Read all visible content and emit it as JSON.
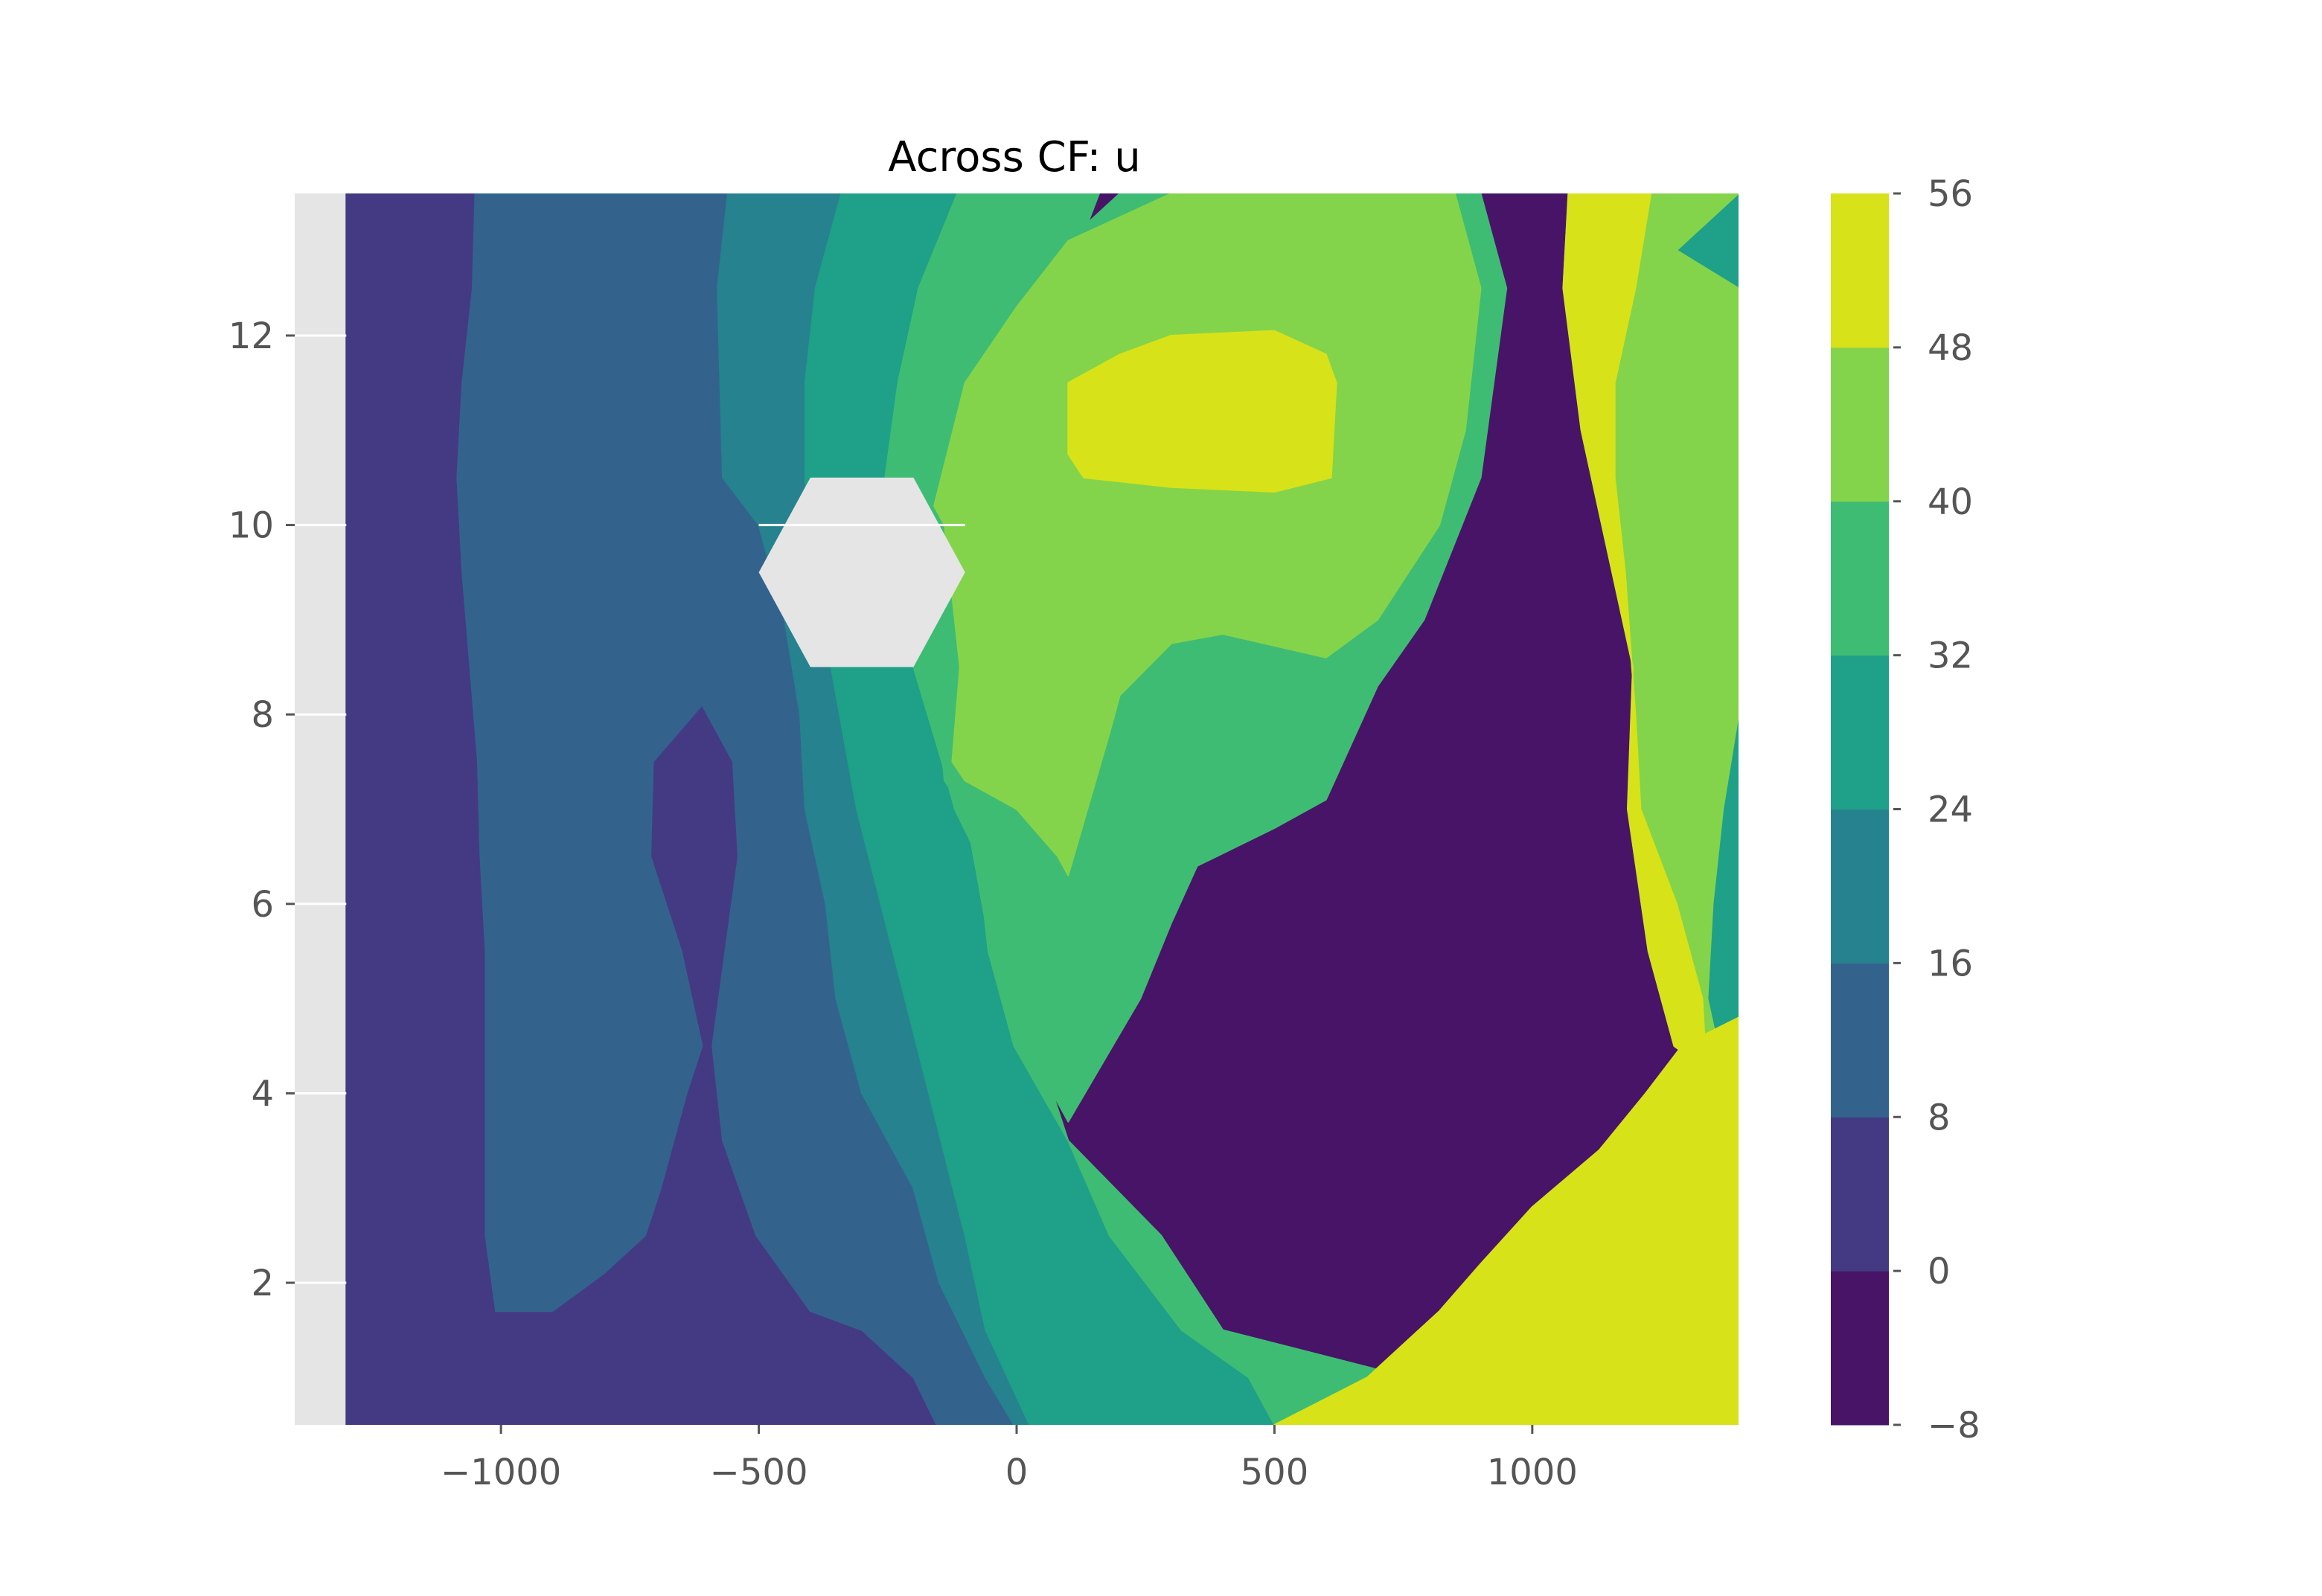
{
  "chart_data": {
    "type": "contour",
    "title": "Across CF: u",
    "xlabel": "",
    "ylabel": "",
    "xlim": [
      -1400,
      1400
    ],
    "ylim": [
      0.5,
      13.5
    ],
    "x_ticks": [
      -1000,
      -500,
      0,
      500,
      1000
    ],
    "x_tick_labels": [
      "−1000",
      "−500",
      "0",
      "500",
      "1000"
    ],
    "y_ticks": [
      2,
      4,
      6,
      8,
      10,
      12
    ],
    "y_tick_labels": [
      "2",
      "4",
      "6",
      "8",
      "10",
      "12"
    ],
    "grid": true,
    "background": "#e5e5e5",
    "colorbar": {
      "levels": [
        -8,
        0,
        8,
        16,
        24,
        32,
        40,
        48,
        56
      ],
      "tick_labels": [
        "−8",
        "0",
        "8",
        "16",
        "24",
        "32",
        "40",
        "48",
        "56"
      ],
      "colors": [
        "#481467",
        "#443a83",
        "#33638d",
        "#26828e",
        "#1fa088",
        "#3fbc73",
        "#84d44b",
        "#d8e219"
      ]
    },
    "data_extent": {
      "x": [
        -1300,
        1400
      ],
      "y": [
        0.5,
        13.5
      ]
    },
    "obstacle": {
      "shape": "hexagon",
      "center": [
        -300,
        9.5
      ],
      "vertices": [
        [
          -500,
          9.5
        ],
        [
          -400,
          10.5
        ],
        [
          -200,
          10.5
        ],
        [
          -100,
          9.5
        ],
        [
          -200,
          8.5
        ],
        [
          -400,
          8.5
        ]
      ]
    },
    "regions": [
      {
        "level": 1,
        "points": [
          [
            -1300,
            13.5
          ],
          [
            -1050,
            13.5
          ],
          [
            -1055,
            12.5
          ],
          [
            -1075,
            11.5
          ],
          [
            -1085,
            10.5
          ],
          [
            -1075,
            9.5
          ],
          [
            -1060,
            8.5
          ],
          [
            -1045,
            7.5
          ],
          [
            -1040,
            6.5
          ],
          [
            -1030,
            5.5
          ],
          [
            -1030,
            4.5
          ],
          [
            -1030,
            3.5
          ],
          [
            -1030,
            2.5
          ],
          [
            -1010,
            1.7
          ],
          [
            -900,
            1.7
          ],
          [
            -800,
            2.1
          ],
          [
            -720,
            2.5
          ],
          [
            -690,
            3.0
          ],
          [
            -640,
            4.0
          ],
          [
            -610,
            4.5
          ],
          [
            -650,
            5.5
          ],
          [
            -680,
            6.0
          ],
          [
            -710,
            6.5
          ],
          [
            -705,
            7.5
          ],
          [
            -610,
            8.1
          ],
          [
            -550,
            7.5
          ],
          [
            -540,
            6.5
          ],
          [
            -565,
            5.5
          ],
          [
            -590,
            4.5
          ],
          [
            -570,
            3.5
          ],
          [
            -505,
            2.5
          ],
          [
            -400,
            1.7
          ],
          [
            -300,
            1.5
          ],
          [
            -200,
            1.0
          ],
          [
            -155,
            0.5
          ],
          [
            -1300,
            0.5
          ]
        ]
      },
      {
        "level": 2,
        "points": [
          [
            -1050,
            13.5
          ],
          [
            -560,
            13.5
          ],
          [
            -580,
            12.5
          ],
          [
            -575,
            11.5
          ],
          [
            -570,
            10.5
          ],
          [
            -500,
            10.0
          ],
          [
            -450,
            9.0
          ],
          [
            -420,
            8.0
          ],
          [
            -410,
            7.0
          ],
          [
            -370,
            6.0
          ],
          [
            -350,
            5.0
          ],
          [
            -300,
            4.0
          ],
          [
            -200,
            3.0
          ],
          [
            -150,
            2.0
          ],
          [
            -60,
            1.0
          ],
          [
            -5,
            0.5
          ],
          [
            -155,
            0.5
          ],
          [
            -200,
            1.0
          ],
          [
            -300,
            1.5
          ],
          [
            -400,
            1.7
          ],
          [
            -505,
            2.5
          ],
          [
            -570,
            3.5
          ],
          [
            -590,
            4.5
          ],
          [
            -565,
            5.5
          ],
          [
            -540,
            6.5
          ],
          [
            -550,
            7.5
          ],
          [
            -610,
            8.1
          ],
          [
            -705,
            7.5
          ],
          [
            -710,
            6.5
          ],
          [
            -680,
            6.0
          ],
          [
            -650,
            5.5
          ],
          [
            -610,
            4.5
          ],
          [
            -640,
            4.0
          ],
          [
            -690,
            3.0
          ],
          [
            -720,
            2.5
          ],
          [
            -800,
            2.1
          ],
          [
            -900,
            1.7
          ],
          [
            -1010,
            1.7
          ],
          [
            -1030,
            2.5
          ],
          [
            -1030,
            3.5
          ],
          [
            -1030,
            4.5
          ],
          [
            -1030,
            5.5
          ],
          [
            -1040,
            6.5
          ],
          [
            -1045,
            7.5
          ],
          [
            -1060,
            8.5
          ],
          [
            -1075,
            9.5
          ],
          [
            -1085,
            10.5
          ],
          [
            -1075,
            11.5
          ],
          [
            -1055,
            12.5
          ]
        ]
      },
      {
        "level": 3,
        "points": [
          [
            -560,
            13.5
          ],
          [
            -340,
            13.5
          ],
          [
            -390,
            12.5
          ],
          [
            -410,
            11.5
          ],
          [
            -410,
            10.5
          ],
          [
            -400,
            9.5
          ],
          [
            -360,
            8.5
          ],
          [
            -310,
            7.0
          ],
          [
            -240,
            5.5
          ],
          [
            -170,
            4.0
          ],
          [
            -100,
            2.5
          ],
          [
            -60,
            1.5
          ],
          [
            25,
            0.5
          ],
          [
            -5,
            0.5
          ],
          [
            -60,
            1.0
          ],
          [
            -150,
            2.0
          ],
          [
            -200,
            3.0
          ],
          [
            -300,
            4.0
          ],
          [
            -350,
            5.0
          ],
          [
            -370,
            6.0
          ],
          [
            -410,
            7.0
          ],
          [
            -420,
            8.0
          ],
          [
            -450,
            9.0
          ],
          [
            -500,
            10.0
          ],
          [
            -570,
            10.5
          ],
          [
            -575,
            11.5
          ],
          [
            -580,
            12.5
          ]
        ]
      },
      {
        "level": 4,
        "points": [
          [
            -340,
            13.5
          ],
          [
            -115,
            13.5
          ],
          [
            -190,
            12.5
          ],
          [
            -230,
            11.5
          ],
          [
            -255,
            10.5
          ],
          [
            -225,
            9.0
          ],
          [
            -200,
            8.5
          ],
          [
            -145,
            7.5
          ],
          [
            -120,
            7.0
          ],
          [
            -75,
            6.5
          ],
          [
            -55,
            5.5
          ],
          [
            -5,
            4.5
          ],
          [
            100,
            3.5
          ],
          [
            280,
            2.5
          ],
          [
            340,
            2.0
          ],
          [
            400,
            1.5
          ],
          [
            760,
            1.0
          ],
          [
            1270,
            0.5
          ],
          [
            1400,
            0.5
          ],
          [
            1400,
            3.5
          ],
          [
            1255,
            3.2
          ],
          [
            1140,
            2.5
          ],
          [
            1020,
            1.8
          ],
          [
            900,
            1.5
          ],
          [
            700,
            0.5
          ],
          [
            25,
            0.5
          ],
          [
            -60,
            1.5
          ],
          [
            -100,
            2.5
          ],
          [
            -170,
            4.0
          ],
          [
            -240,
            5.5
          ],
          [
            -310,
            7.0
          ],
          [
            -360,
            8.5
          ],
          [
            -400,
            9.5
          ],
          [
            -410,
            10.5
          ],
          [
            -410,
            11.5
          ],
          [
            -390,
            12.5
          ]
        ]
      },
      {
        "level": 4,
        "points": [
          [
            1400,
            13.5
          ],
          [
            1070,
            13.5
          ],
          [
            1060,
            12.5
          ],
          [
            1095,
            11.0
          ],
          [
            1195,
            8.5
          ],
          [
            1185,
            7.0
          ],
          [
            1225,
            5.5
          ],
          [
            1275,
            4.5
          ],
          [
            1400,
            4.0
          ],
          [
            1400,
            8.0
          ],
          [
            1370,
            7.0
          ],
          [
            1350,
            6.0
          ],
          [
            1340,
            5.0
          ],
          [
            1360,
            4.5
          ],
          [
            1370,
            3.5
          ],
          [
            1400,
            3.5
          ]
        ]
      },
      {
        "level": 5,
        "points": [
          [
            -115,
            13.5
          ],
          [
            160,
            13.5
          ],
          [
            90,
            12.5
          ],
          [
            0,
            12.0
          ],
          [
            -65,
            11.5
          ],
          [
            -125,
            10.5
          ],
          [
            -140,
            9.0
          ],
          [
            -115,
            8.0
          ],
          [
            -100,
            7.0
          ],
          [
            -70,
            6.5
          ],
          [
            -10,
            5.5
          ],
          [
            40,
            4.5
          ],
          [
            100,
            3.5
          ],
          [
            180,
            2.5
          ],
          [
            320,
            1.5
          ],
          [
            450,
            1.0
          ],
          [
            500,
            0.5
          ],
          [
            1270,
            0.5
          ],
          [
            760,
            1.0
          ],
          [
            400,
            1.5
          ],
          [
            340,
            2.0
          ],
          [
            280,
            2.5
          ],
          [
            100,
            3.5
          ],
          [
            -5,
            4.5
          ],
          [
            -55,
            5.5
          ],
          [
            -75,
            6.5
          ],
          [
            -120,
            7.0
          ],
          [
            -145,
            7.5
          ],
          [
            -200,
            8.5
          ],
          [
            -225,
            9.0
          ],
          [
            -255,
            10.5
          ],
          [
            -230,
            11.5
          ],
          [
            -190,
            12.5
          ]
        ]
      },
      {
        "level": 6,
        "points": [
          [
            1400,
            13.5
          ],
          [
            1230,
            13.5
          ],
          [
            1200,
            12.5
          ],
          [
            1160,
            11.5
          ],
          [
            1160,
            10.5
          ],
          [
            1180,
            9.5
          ],
          [
            1200,
            8.0
          ],
          [
            1210,
            7.0
          ],
          [
            1280,
            6.0
          ],
          [
            1330,
            5.0
          ],
          [
            1340,
            4.0
          ],
          [
            1400,
            3.5
          ],
          [
            1370,
            3.5
          ],
          [
            1360,
            4.5
          ],
          [
            1340,
            5.0
          ],
          [
            1350,
            6.0
          ],
          [
            1370,
            7.0
          ],
          [
            1400,
            8.0
          ],
          [
            1400,
            12.5
          ],
          [
            1280,
            12.9
          ]
        ]
      },
      {
        "level": 6,
        "points": [
          [
            560,
            0.5
          ],
          [
            680,
            1.0
          ],
          [
            820,
            1.7
          ],
          [
            900,
            2.2
          ],
          [
            1000,
            2.8
          ],
          [
            1130,
            3.4
          ],
          [
            1220,
            4.0
          ],
          [
            1290,
            4.5
          ],
          [
            1400,
            4.8
          ],
          [
            1400,
            0.5
          ]
        ]
      },
      {
        "level": 7,
        "points": [
          [
            1230,
            13.5
          ],
          [
            1070,
            13.5
          ],
          [
            1060,
            12.5
          ],
          [
            1095,
            11.0
          ],
          [
            1195,
            8.5
          ],
          [
            1185,
            7.0
          ],
          [
            1225,
            5.5
          ],
          [
            1275,
            4.5
          ],
          [
            1400,
            4.0
          ],
          [
            1400,
            3.5
          ],
          [
            1340,
            4.0
          ],
          [
            1330,
            5.0
          ],
          [
            1280,
            6.0
          ],
          [
            1210,
            7.0
          ],
          [
            1200,
            8.0
          ],
          [
            1180,
            9.5
          ],
          [
            1160,
            10.5
          ],
          [
            1160,
            11.5
          ],
          [
            1200,
            12.5
          ]
        ]
      },
      {
        "level": 7,
        "points": [
          [
            500,
            0.5
          ],
          [
            560,
            0.5
          ],
          [
            1400,
            0.5
          ],
          [
            1400,
            4.8
          ],
          [
            1290,
            4.5
          ],
          [
            1220,
            4.0
          ],
          [
            1130,
            3.4
          ],
          [
            1000,
            2.8
          ],
          [
            900,
            2.2
          ],
          [
            820,
            1.7
          ],
          [
            680,
            1.0
          ]
        ]
      }
    ]
  }
}
